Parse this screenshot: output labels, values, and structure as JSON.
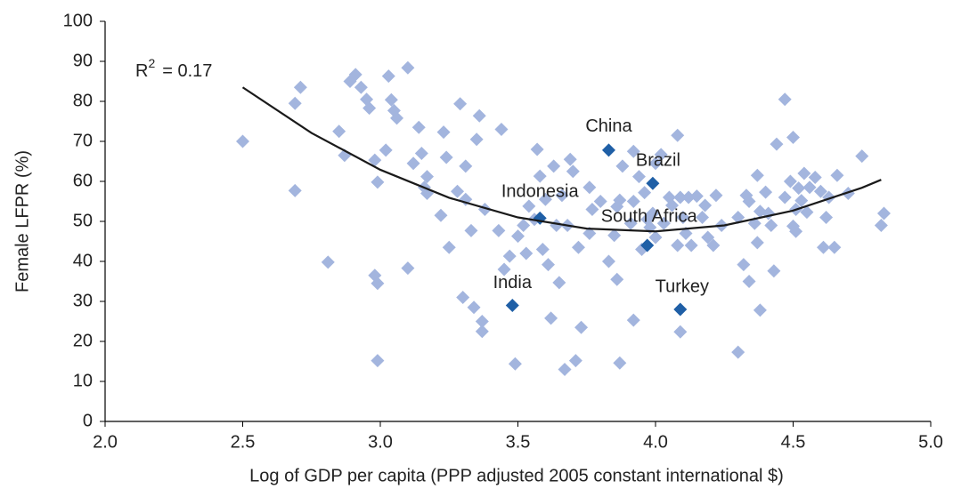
{
  "chart_data": {
    "type": "scatter",
    "xlabel": "Log of GDP per capita (PPP adjusted 2005 constant international $)",
    "ylabel": "Female LFPR (%)",
    "xlim": [
      2.0,
      5.0
    ],
    "xticks": [
      {
        "value": 2.0,
        "label": "2.0"
      },
      2.5,
      {
        "value": 3.0,
        "label": "3.0"
      },
      3.5,
      {
        "value": 4.0,
        "label": "4.0"
      },
      4.5,
      {
        "value": 5.0,
        "label": "5.0"
      }
    ],
    "ylim": [
      0,
      100
    ],
    "yticks": [
      0,
      10,
      20,
      30,
      40,
      50,
      60,
      70,
      80,
      90,
      100
    ],
    "r2_label": {
      "base": "R",
      "sup": "2",
      "rest": "= 0.17"
    },
    "trend_line": {
      "color": "#1a1a1a",
      "x": [
        2.5,
        2.75,
        3.0,
        3.25,
        3.5,
        3.75,
        4.0,
        4.25,
        4.5,
        4.75,
        4.82
      ],
      "values": [
        83.5,
        72.1,
        62.9,
        55.9,
        51.0,
        48.2,
        47.5,
        49.0,
        52.7,
        58.4,
        60.4
      ]
    },
    "series": [
      {
        "color": "#a3b5de",
        "x": [
          2.5,
          2.69,
          2.69,
          2.71,
          2.81,
          2.85,
          2.87,
          2.89,
          2.91,
          2.93,
          2.95,
          2.96,
          2.98,
          2.98,
          2.99,
          2.99,
          2.99,
          3.02,
          3.03,
          3.04,
          3.05,
          3.06,
          3.1,
          3.1,
          3.12,
          3.14,
          3.15,
          3.16,
          3.17,
          3.17,
          3.22,
          3.23,
          3.24,
          3.25,
          3.28,
          3.29,
          3.3,
          3.31,
          3.31,
          3.33,
          3.34,
          3.35,
          3.36,
          3.37,
          3.37,
          3.38,
          3.43,
          3.44,
          3.45,
          3.47,
          3.49,
          3.5,
          3.52,
          3.53,
          3.54,
          3.56,
          3.57,
          3.58,
          3.59,
          3.6,
          3.61,
          3.62,
          3.63,
          3.64,
          3.65,
          3.66,
          3.67,
          3.68,
          3.69,
          3.7,
          3.71,
          3.72,
          3.73,
          3.76,
          3.76,
          3.77,
          3.8,
          3.83,
          3.85,
          3.86,
          3.86,
          3.87,
          3.87,
          3.88,
          3.91,
          3.92,
          3.92,
          3.92,
          3.94,
          3.95,
          3.96,
          3.97,
          3.98,
          3.99,
          4.0,
          4.0,
          4.02,
          4.03,
          4.05,
          4.06,
          4.08,
          4.08,
          4.09,
          4.09,
          4.1,
          4.11,
          4.12,
          4.13,
          4.15,
          4.17,
          4.18,
          4.19,
          4.21,
          4.22,
          4.24,
          4.3,
          4.3,
          4.32,
          4.33,
          4.34,
          4.34,
          4.36,
          4.37,
          4.37,
          4.38,
          4.38,
          4.4,
          4.41,
          4.42,
          4.43,
          4.44,
          4.47,
          4.47,
          4.49,
          4.5,
          4.5,
          4.51,
          4.51,
          4.52,
          4.53,
          4.54,
          4.55,
          4.56,
          4.58,
          4.6,
          4.61,
          4.62,
          4.63,
          4.65,
          4.66,
          4.7,
          4.75,
          4.82,
          4.83
        ],
        "values": [
          70,
          57.7,
          79.5,
          83.5,
          39.8,
          72.5,
          66.5,
          85,
          86.7,
          83.5,
          80.5,
          78.3,
          65.3,
          36.5,
          34.5,
          15.2,
          59.8,
          67.8,
          86.3,
          80.4,
          77.7,
          75.8,
          88.4,
          38.3,
          64.5,
          73.5,
          67,
          58.5,
          61.2,
          57,
          51.5,
          72.3,
          66,
          43.5,
          57.5,
          79.4,
          31,
          63.8,
          55.5,
          47.7,
          28.5,
          70.5,
          76.4,
          25,
          22.5,
          53,
          47.7,
          73,
          38,
          41.3,
          14.4,
          46.3,
          49,
          42,
          53.8,
          50.5,
          68,
          61.3,
          43,
          55.5,
          39.2,
          25.8,
          63.8,
          49,
          34.7,
          56.5,
          13,
          49,
          65.5,
          62.5,
          15.2,
          43.5,
          23.5,
          47,
          58.5,
          53,
          55,
          40,
          46.5,
          53.7,
          35.5,
          55.3,
          14.6,
          63.8,
          49.5,
          67.5,
          25.3,
          55,
          61.2,
          43,
          57.2,
          50.5,
          48.5,
          52,
          64.5,
          46,
          66.7,
          49.5,
          56,
          54,
          71.5,
          44,
          22.4,
          56,
          51,
          47,
          56,
          44,
          56.3,
          51,
          54,
          46,
          44,
          56.5,
          49,
          51,
          17.3,
          39.2,
          56.5,
          55,
          35,
          49.5,
          44.7,
          61.5,
          27.8,
          52.5,
          57.3,
          52,
          49,
          37.6,
          69.3,
          80.5,
          56,
          60,
          71,
          48.8,
          47.5,
          53,
          58.3,
          55.2,
          62,
          52.3,
          58.5,
          61,
          57.5,
          43.5,
          51,
          56,
          43.5,
          61.5,
          57,
          66.3,
          49,
          52
        ]
      },
      {
        "color": "#1f5fa6",
        "labels": [
          "China",
          "Brazil",
          "Indonesia",
          "South Africa",
          "India",
          "Turkey"
        ],
        "x": [
          3.83,
          3.99,
          3.58,
          3.97,
          3.48,
          4.09
        ],
        "values": [
          67.8,
          59.5,
          50.8,
          44,
          29,
          28
        ]
      }
    ]
  }
}
